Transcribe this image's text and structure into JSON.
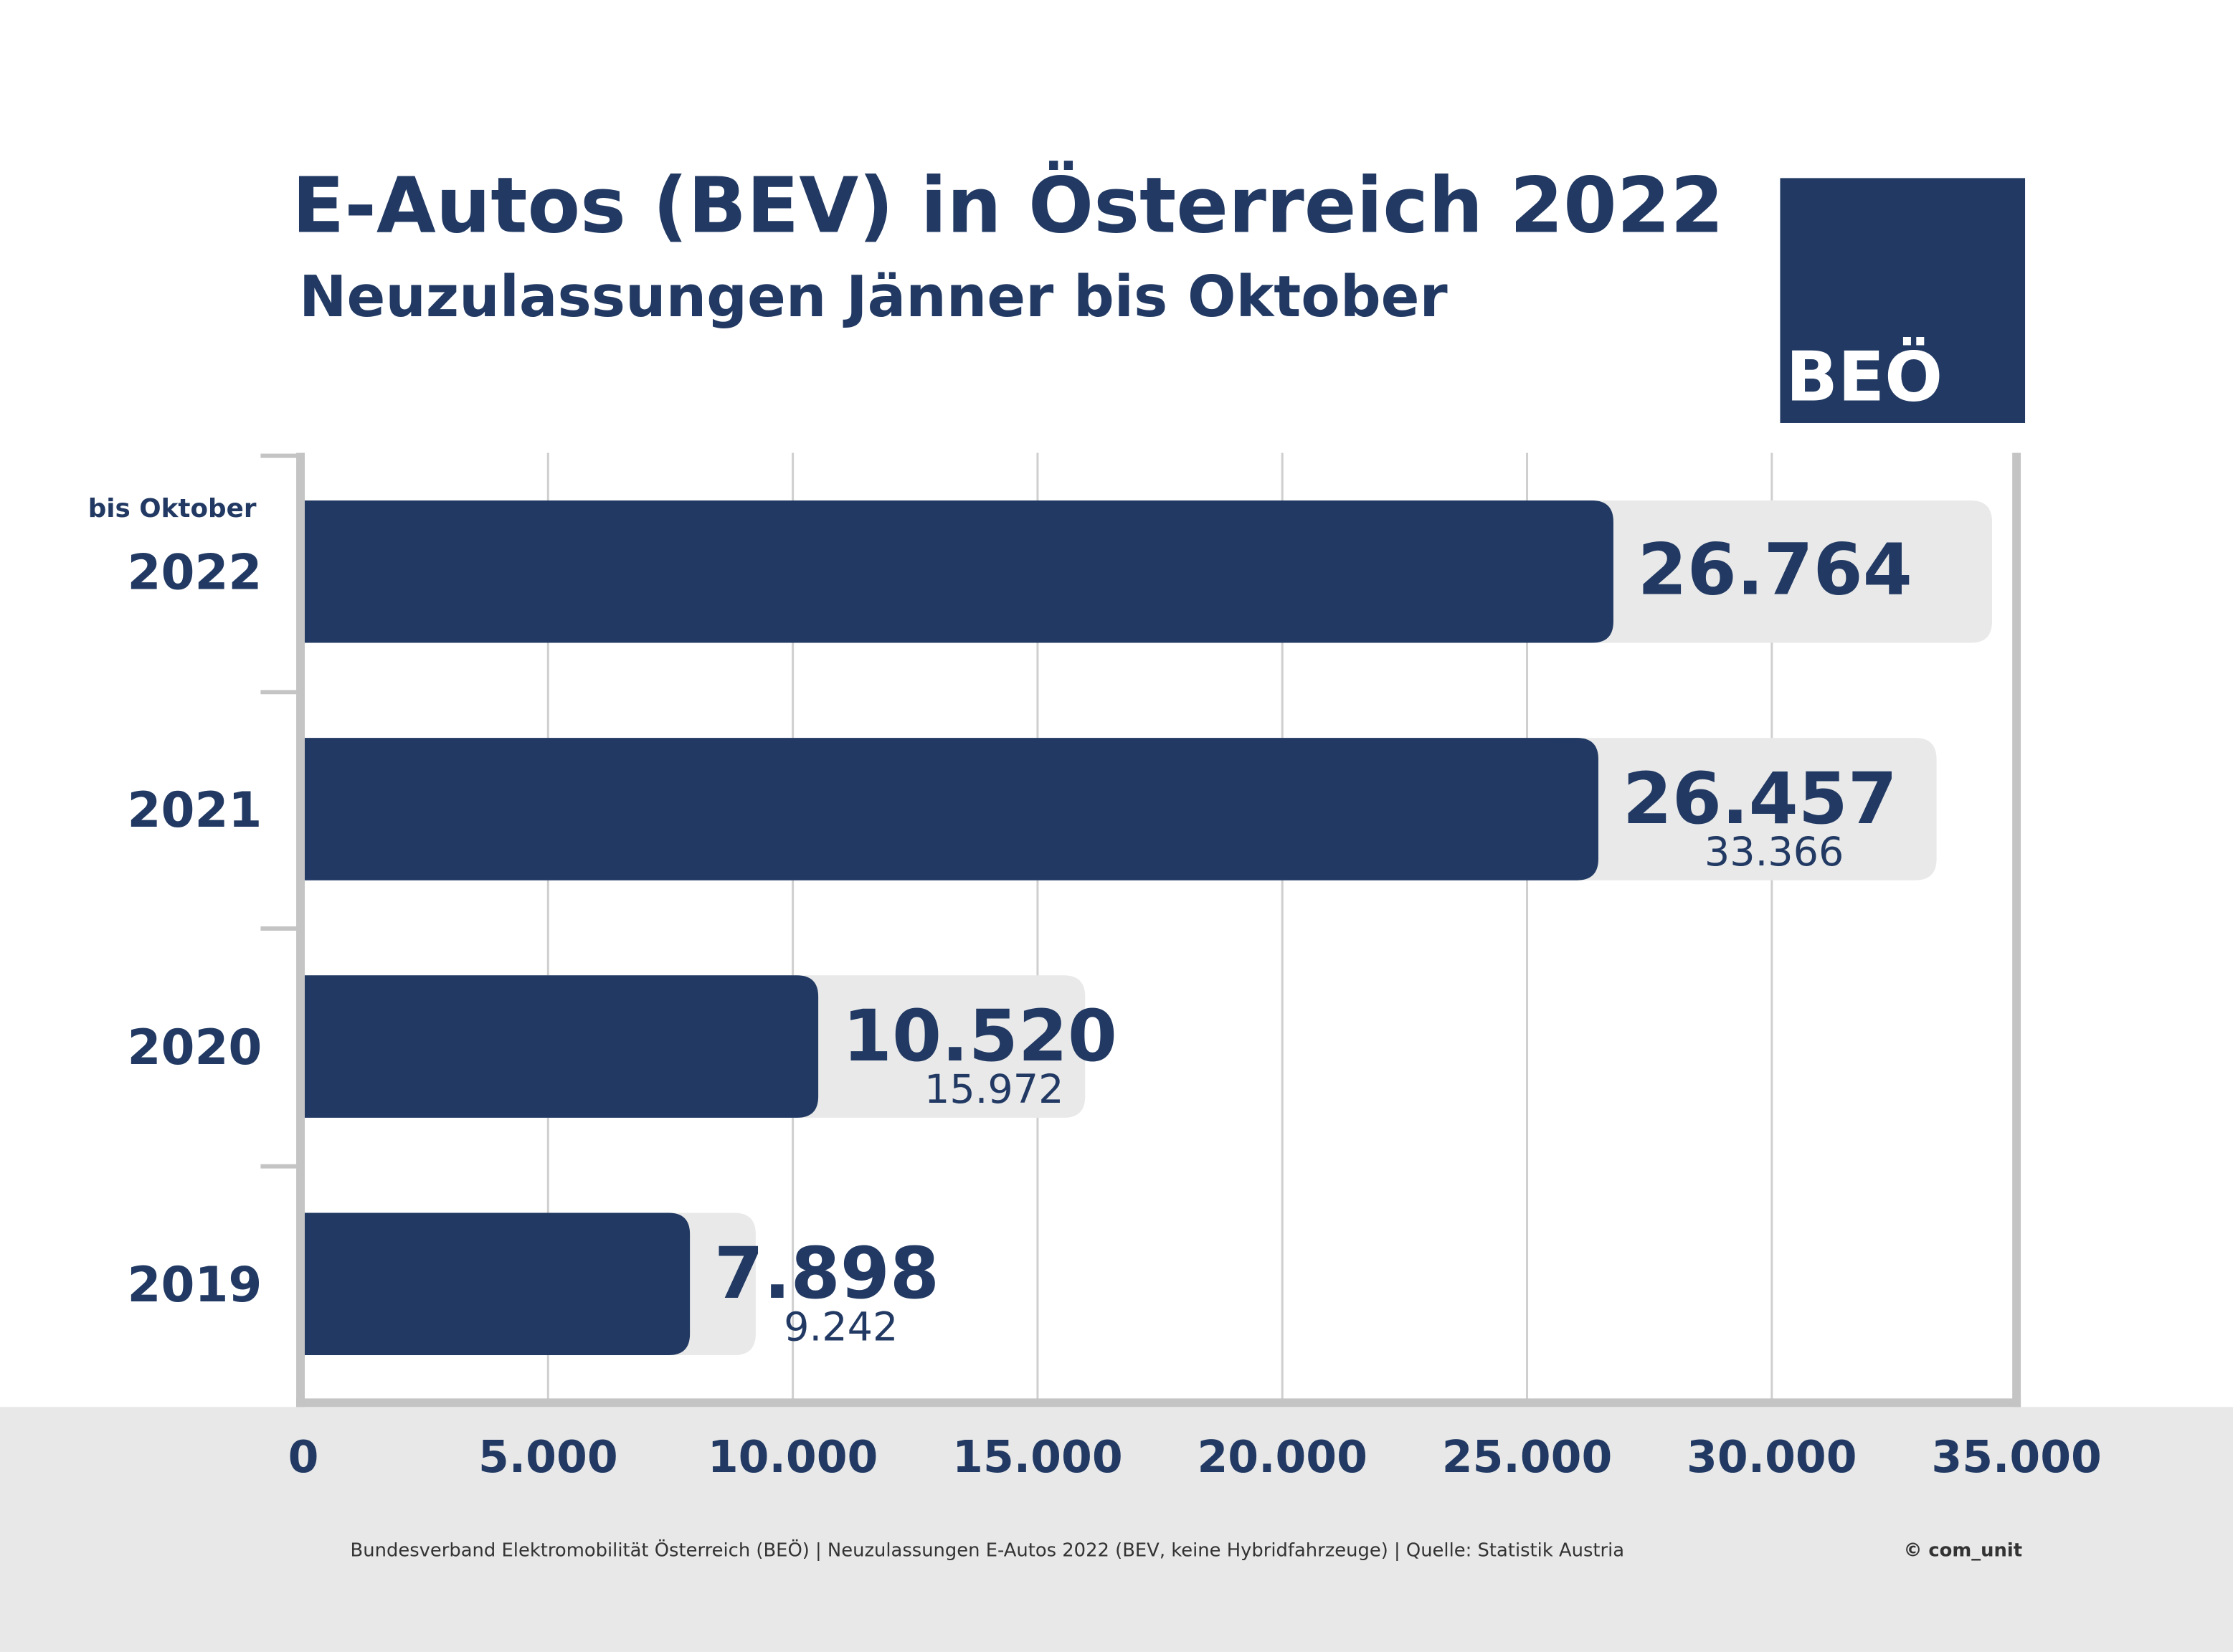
{
  "chart_data": {
    "type": "bar",
    "orientation": "horizontal",
    "title": "E-Autos (BEV) in Österreich 2022",
    "subtitle": "Neuzulassungen Jänner bis Oktober",
    "annotation": "bis Oktober",
    "logo": "BEÖ",
    "footer": "Bundesverband Elektromobilität Österreich (BEÖ) | Neuzulassungen E-Autos 2022 (BEV, keine Hybridfahrzeuge) | Quelle: Statistik Austria",
    "credit": "© com_unit",
    "categories": [
      "2022",
      "2021",
      "2020",
      "2019"
    ],
    "series": [
      {
        "color": "#223a63",
        "values": [
          26764,
          26457,
          10520,
          7898
        ],
        "value_labels": [
          "26.764",
          "26.457",
          "10.520",
          "7.898"
        ]
      },
      {
        "color": "#e9e9e9",
        "values": [
          34500,
          33366,
          15972,
          9242
        ],
        "value_labels": [
          null,
          "33.366",
          "15.972",
          "9.242"
        ]
      }
    ],
    "xlim": [
      0,
      35000
    ],
    "xticks": [
      0,
      {
        "value": 5000,
        "label": "5.000"
      },
      {
        "value": 10000,
        "label": "10.000"
      },
      {
        "value": 15000,
        "label": "15.000"
      },
      {
        "value": 20000,
        "label": "20.000"
      },
      {
        "value": 25000,
        "label": "25.000"
      },
      {
        "value": 30000,
        "label": "30.000"
      },
      {
        "value": 35000,
        "label": "35.000"
      }
    ],
    "grid": true
  }
}
